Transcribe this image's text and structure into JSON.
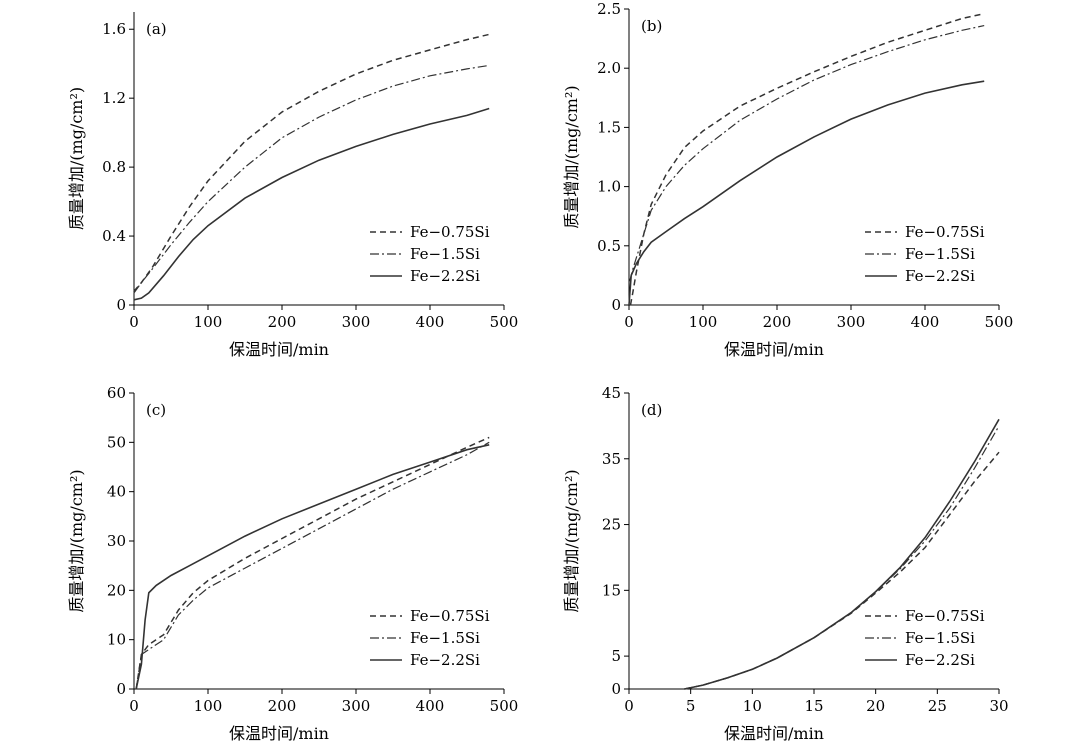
{
  "chart_data": [
    {
      "panel": "(a)",
      "type": "line",
      "xlabel": "保温时间/min",
      "ylabel": "质量增加/(mg/cm²)",
      "xlim": [
        0,
        500
      ],
      "ylim": [
        0,
        1.7
      ],
      "xticks": [
        "0",
        "100",
        "200",
        "300",
        "400",
        "500"
      ],
      "yticks": [
        "0",
        "0.4",
        "0.8",
        "1.2",
        "1.6"
      ],
      "ytick_values": [
        0,
        0.4,
        0.8,
        1.2,
        1.6
      ],
      "legend_position": "lower-right",
      "series": [
        {
          "name": "Fe−0.75Si",
          "style": "dashed",
          "x": [
            0,
            10,
            25,
            50,
            75,
            100,
            150,
            200,
            250,
            300,
            350,
            400,
            450,
            480
          ],
          "y": [
            0.08,
            0.13,
            0.22,
            0.4,
            0.57,
            0.72,
            0.95,
            1.12,
            1.24,
            1.34,
            1.42,
            1.48,
            1.54,
            1.57
          ]
        },
        {
          "name": "Fe−1.5Si",
          "style": "dashdot",
          "x": [
            0,
            10,
            25,
            50,
            75,
            100,
            150,
            200,
            250,
            300,
            350,
            400,
            450,
            480
          ],
          "y": [
            0.07,
            0.13,
            0.21,
            0.35,
            0.48,
            0.6,
            0.8,
            0.97,
            1.09,
            1.19,
            1.27,
            1.33,
            1.37,
            1.39
          ]
        },
        {
          "name": "Fe−2.2Si",
          "style": "solid",
          "x": [
            0,
            10,
            20,
            40,
            60,
            80,
            100,
            150,
            200,
            250,
            300,
            350,
            400,
            450,
            480
          ],
          "y": [
            0.03,
            0.04,
            0.07,
            0.17,
            0.28,
            0.38,
            0.46,
            0.62,
            0.74,
            0.84,
            0.92,
            0.99,
            1.05,
            1.1,
            1.14
          ]
        }
      ]
    },
    {
      "panel": "(b)",
      "type": "line",
      "xlabel": "保温时间/min",
      "ylabel": "质量增加/(mg/cm²)",
      "xlim": [
        0,
        500
      ],
      "ylim": [
        0,
        2.5
      ],
      "xticks": [
        "0",
        "100",
        "200",
        "300",
        "400",
        "500"
      ],
      "yticks": [
        "0",
        "0.5",
        "1.0",
        "1.5",
        "2.0",
        "2.5"
      ],
      "ytick_values": [
        0,
        0.5,
        1.0,
        1.5,
        2.0,
        2.5
      ],
      "legend_position": "lower-right",
      "series": [
        {
          "name": "Fe−0.75Si",
          "style": "dashed",
          "x": [
            2,
            5,
            10,
            20,
            30,
            50,
            75,
            100,
            150,
            200,
            250,
            300,
            350,
            400,
            450,
            480
          ],
          "y": [
            0.0,
            0.1,
            0.28,
            0.6,
            0.85,
            1.1,
            1.33,
            1.47,
            1.68,
            1.83,
            1.97,
            2.1,
            2.22,
            2.32,
            2.42,
            2.46
          ]
        },
        {
          "name": "Fe−1.5Si",
          "style": "dashdot",
          "x": [
            1,
            5,
            10,
            20,
            30,
            50,
            75,
            100,
            150,
            200,
            250,
            300,
            350,
            400,
            450,
            480
          ],
          "y": [
            0.2,
            0.3,
            0.4,
            0.6,
            0.8,
            1.0,
            1.18,
            1.32,
            1.56,
            1.74,
            1.9,
            2.03,
            2.14,
            2.24,
            2.32,
            2.36
          ]
        },
        {
          "name": "Fe−2.2Si",
          "style": "solid",
          "x": [
            0,
            3,
            10,
            20,
            30,
            50,
            75,
            100,
            150,
            200,
            250,
            300,
            350,
            400,
            450,
            480
          ],
          "y": [
            0.0,
            0.25,
            0.35,
            0.45,
            0.53,
            0.62,
            0.73,
            0.83,
            1.05,
            1.25,
            1.42,
            1.57,
            1.69,
            1.79,
            1.86,
            1.89
          ]
        }
      ]
    },
    {
      "panel": "(c)",
      "type": "line",
      "xlabel": "保温时间/min",
      "ylabel": "质量增加/(mg/cm²)",
      "xlim": [
        0,
        500
      ],
      "ylim": [
        0,
        60
      ],
      "xticks": [
        "0",
        "100",
        "200",
        "300",
        "400",
        "500"
      ],
      "yticks": [
        "0",
        "10",
        "20",
        "30",
        "40",
        "50",
        "60"
      ],
      "ytick_values": [
        0,
        10,
        20,
        30,
        40,
        50,
        60
      ],
      "legend_position": "lower-right",
      "series": [
        {
          "name": "Fe−0.75Si",
          "style": "dashed",
          "x": [
            3,
            10,
            20,
            40,
            60,
            80,
            100,
            150,
            200,
            250,
            300,
            350,
            400,
            450,
            480
          ],
          "y": [
            0,
            7,
            9,
            11,
            16,
            19.5,
            22,
            26.5,
            30.5,
            34.5,
            38.5,
            42,
            45.5,
            49,
            51
          ]
        },
        {
          "name": "Fe−1.5Si",
          "style": "dashdot",
          "x": [
            3,
            10,
            20,
            40,
            60,
            80,
            100,
            150,
            200,
            250,
            300,
            350,
            400,
            450,
            480
          ],
          "y": [
            0,
            7,
            8,
            10,
            15,
            18,
            20.5,
            24.5,
            28.5,
            32.5,
            36.5,
            40.5,
            44,
            47.5,
            50
          ]
        },
        {
          "name": "Fe−2.2Si",
          "style": "solid",
          "x": [
            3,
            10,
            15,
            20,
            30,
            50,
            75,
            100,
            150,
            200,
            250,
            300,
            350,
            400,
            450,
            480
          ],
          "y": [
            0,
            5,
            14,
            19.5,
            21,
            23,
            25,
            27,
            31,
            34.5,
            37.5,
            40.5,
            43.5,
            46,
            48.5,
            49.5
          ]
        }
      ]
    },
    {
      "panel": "(d)",
      "type": "line",
      "xlabel": "保温时间/min",
      "ylabel": "质量增加/(mg/cm²)",
      "xlim": [
        0,
        30
      ],
      "ylim": [
        0,
        45
      ],
      "xticks": [
        "0",
        "5",
        "10",
        "15",
        "20",
        "25",
        "30"
      ],
      "yticks": [
        "0",
        "5",
        "15",
        "25",
        "35",
        "45"
      ],
      "ytick_values": [
        0,
        5,
        15,
        25,
        35,
        45
      ],
      "legend_position": "lower-right",
      "series": [
        {
          "name": "Fe−0.75Si",
          "style": "dashed",
          "x": [
            4.5,
            6,
            8,
            10,
            12,
            15,
            18,
            20,
            22,
            24,
            26,
            28,
            30
          ],
          "y": [
            0,
            0.6,
            1.7,
            3.0,
            4.7,
            7.8,
            11.5,
            14.6,
            17.8,
            21.5,
            26.5,
            31.5,
            36
          ]
        },
        {
          "name": "Fe−1.5Si",
          "style": "dashdot",
          "x": [
            4.5,
            6,
            8,
            10,
            12,
            15,
            18,
            20,
            22,
            24,
            26,
            28,
            30
          ],
          "y": [
            0,
            0.6,
            1.7,
            3.0,
            4.7,
            7.8,
            11.6,
            14.8,
            18.3,
            22.5,
            27.5,
            33.5,
            40
          ]
        },
        {
          "name": "Fe−2.2Si",
          "style": "solid",
          "x": [
            4.5,
            6,
            8,
            10,
            12,
            15,
            18,
            20,
            22,
            24,
            26,
            28,
            30
          ],
          "y": [
            0,
            0.6,
            1.7,
            3.0,
            4.7,
            7.8,
            11.6,
            14.8,
            18.5,
            23,
            28.5,
            34.5,
            41
          ]
        }
      ]
    }
  ]
}
